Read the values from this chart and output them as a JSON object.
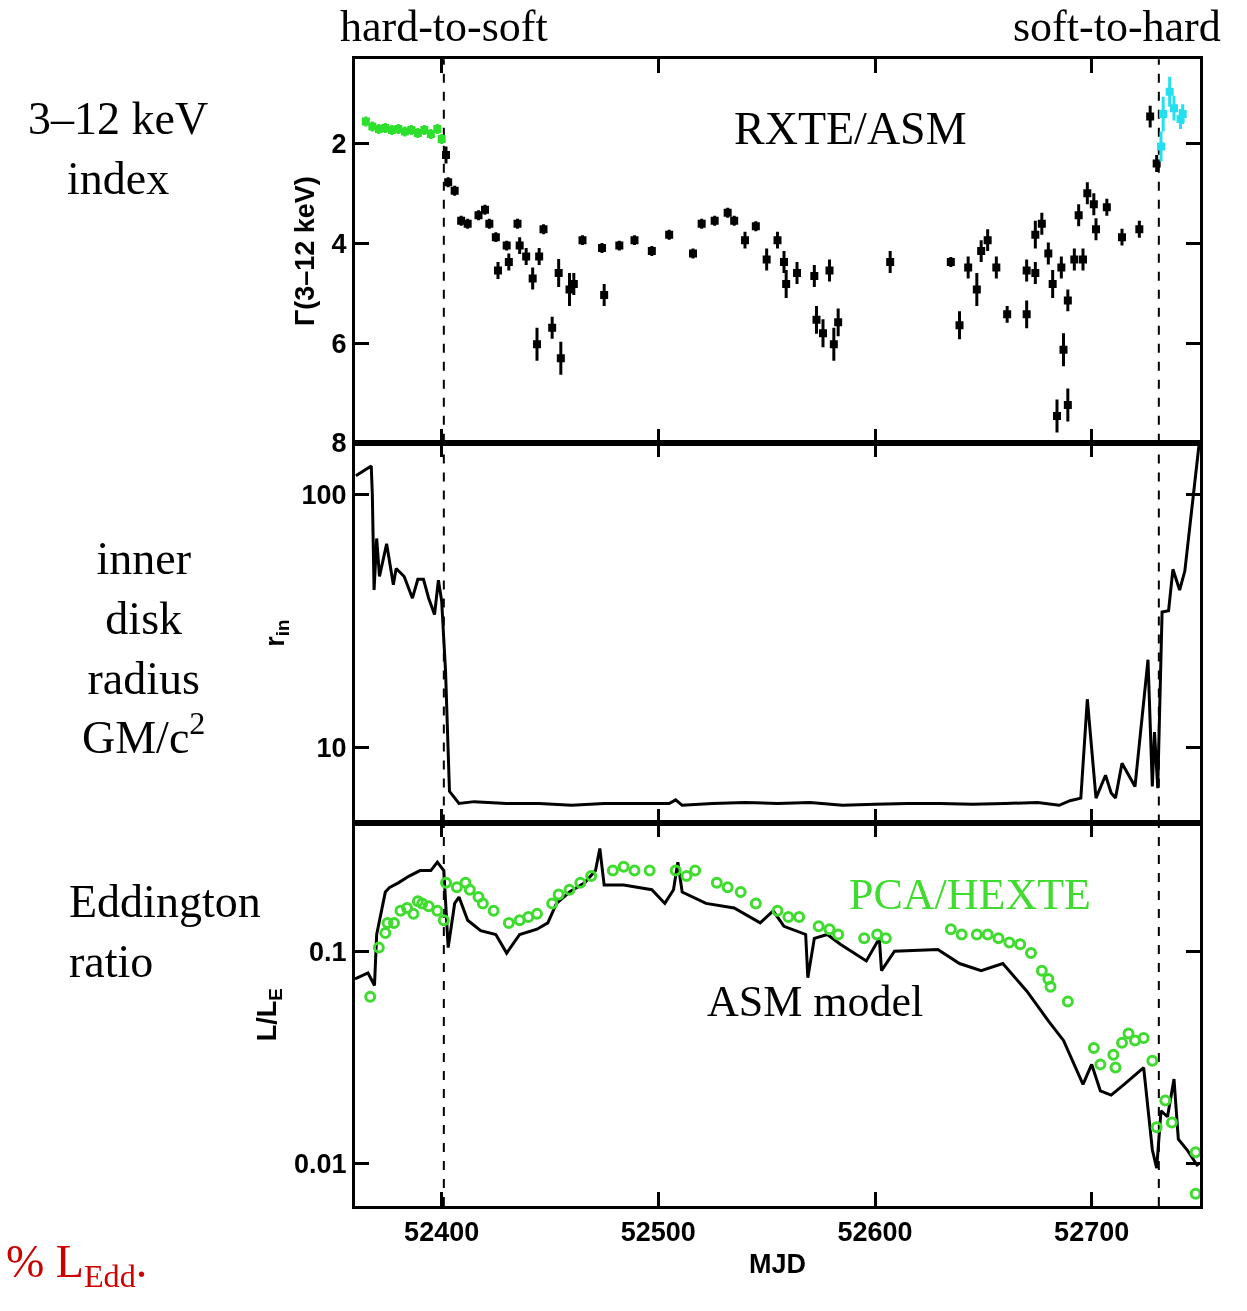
{
  "chart_data": [
    {
      "type": "scatter",
      "ylabel": "Γ(3–12 keV)",
      "xlim": [
        52360,
        52750
      ],
      "xticks": [
        52400,
        52500,
        52600,
        52700
      ],
      "ylim": [
        8,
        0.3
      ],
      "yticks": [
        2,
        4,
        6,
        8
      ],
      "tick_labels": "y",
      "marker": "square",
      "annotations": [
        "3–12 keV\nindex",
        "RXTE/ASM"
      ],
      "ref_lines": [
        {
          "axis": "x",
          "value": 52401,
          "label": "hard-to-soft",
          "line_style": "dashed"
        },
        {
          "axis": "x",
          "value": 52731,
          "label": "soft-to-hard",
          "line_style": "dashed"
        }
      ],
      "series": [
        {
          "color": "#2ee02e",
          "x": [
            52365,
            52368,
            52371,
            52374,
            52377,
            52380,
            52383,
            52386,
            52389,
            52392,
            52395,
            52398,
            52400
          ],
          "values": [
            1.55,
            1.65,
            1.7,
            1.68,
            1.72,
            1.7,
            1.75,
            1.72,
            1.78,
            1.72,
            1.8,
            1.7,
            1.9
          ],
          "errors": [
            0.1,
            0.1,
            0.1,
            0.1,
            0.1,
            0.1,
            0.1,
            0.1,
            0.1,
            0.1,
            0.1,
            0.1,
            0.1
          ]
        },
        {
          "color": "#000000",
          "x": [
            52402,
            52403,
            52406,
            52409,
            52412,
            52417,
            52420,
            52422,
            52425,
            52426,
            52430,
            52431,
            52435,
            52436,
            52439,
            52442,
            52445,
            52447,
            52444,
            52451,
            52454,
            52455,
            52459,
            52461,
            52465,
            52475,
            52474,
            52482,
            52489,
            52497,
            52505,
            52516,
            52520,
            52526,
            52532,
            52535,
            52540,
            52545,
            52550,
            52555,
            52558,
            52564,
            52559,
            52572,
            52573,
            52576,
            52579,
            52581,
            52583,
            52607,
            52635,
            52639,
            52643,
            52647,
            52649,
            52652,
            52656,
            52661,
            52670,
            52670,
            52674,
            52677,
            52674,
            52680,
            52682,
            52684,
            52686,
            52687,
            52689,
            52689,
            52692,
            52694,
            52696,
            52698,
            52701,
            52702,
            52707,
            52714,
            52722,
            52727,
            52730
          ],
          "values": [
            2.22,
            2.77,
            2.94,
            3.54,
            3.6,
            3.43,
            3.32,
            3.6,
            3.87,
            4.54,
            4.04,
            4.37,
            3.6,
            4.04,
            4.26,
            4.7,
            4.26,
            3.71,
            6.02,
            5.69,
            4.59,
            6.3,
            4.92,
            4.81,
            3.93,
            5.03,
            4.09,
            4.04,
            3.93,
            4.15,
            3.82,
            4.2,
            3.6,
            3.54,
            3.38,
            3.54,
            3.93,
            3.65,
            4.32,
            3.93,
            4.37,
            4.59,
            4.81,
            4.65,
            5.53,
            5.8,
            4.54,
            6.02,
            5.58,
            4.37,
            4.37,
            5.64,
            4.48,
            4.92,
            4.15,
            3.93,
            4.48,
            5.42,
            5.42,
            4.54,
            3.82,
            3.6,
            4.59,
            4.2,
            4.81,
            7.46,
            4.48,
            6.13,
            7.24,
            5.14,
            4.32,
            3.43,
            4.32,
            2.99,
            3.21,
            3.71,
            3.27,
            3.87,
            3.71,
            1.45,
            2.39
          ],
          "errors": [
            0.17,
            0.1,
            0.1,
            0.1,
            0.1,
            0.1,
            0.1,
            0.1,
            0.1,
            0.17,
            0.1,
            0.17,
            0.1,
            0.17,
            0.17,
            0.22,
            0.17,
            0.1,
            0.33,
            0.22,
            0.28,
            0.33,
            0.33,
            0.22,
            0.1,
            0.22,
            0.1,
            0.1,
            0.1,
            0.1,
            0.1,
            0.1,
            0.1,
            0.1,
            0.1,
            0.1,
            0.17,
            0.1,
            0.22,
            0.17,
            0.22,
            0.22,
            0.28,
            0.22,
            0.28,
            0.28,
            0.22,
            0.33,
            0.28,
            0.22,
            0.1,
            0.28,
            0.22,
            0.33,
            0.22,
            0.22,
            0.22,
            0.17,
            0.28,
            0.22,
            0.28,
            0.22,
            0.22,
            0.22,
            0.28,
            0.33,
            0.22,
            0.33,
            0.33,
            0.22,
            0.22,
            0.22,
            0.22,
            0.22,
            0.22,
            0.22,
            0.17,
            0.17,
            0.17,
            0.22,
            0.17
          ]
        },
        {
          "color": "#22e0f0",
          "x": [
            52732,
            52733,
            52736,
            52738,
            52741,
            52742
          ],
          "values": [
            2.05,
            1.4,
            0.95,
            1.28,
            1.5,
            1.4
          ],
          "errors": [
            0.3,
            0.35,
            0.3,
            0.25,
            0.2,
            0.2
          ]
        }
      ]
    },
    {
      "type": "line",
      "ylabel": "r$_{in}$",
      "xlim": [
        52360,
        52750
      ],
      "xticks": [
        52400,
        52500,
        52600,
        52700
      ],
      "ylim": [
        5,
        160
      ],
      "yticks": [
        10,
        100
      ],
      "log": true,
      "tick_labels": "y",
      "annotations": [
        "inner\ndisk\nradius\nGM/c$^{2}$"
      ],
      "ref_lines": [
        {
          "axis": "x",
          "value": 52401,
          "line_style": "dashed"
        },
        {
          "axis": "x",
          "value": 52731,
          "line_style": "dashed"
        }
      ],
      "series": [
        {
          "color": "#000000",
          "x": [
            52360.4,
            52367.5,
            52368,
            52368.8,
            52370,
            52371.3,
            52374.6,
            52377.7,
            52379,
            52382.7,
            52386.5,
            52389,
            52391.6,
            52394,
            52396.7,
            52398.5,
            52400,
            52401.8,
            52403.6,
            52408,
            52415,
            52430,
            52445,
            52460,
            52475,
            52490,
            52505,
            52508,
            52511,
            52525,
            52540,
            52555,
            52570,
            52585,
            52600,
            52615,
            52630,
            52645,
            52660,
            52675,
            52685,
            52690,
            52695,
            52698,
            52702,
            52706.4,
            52709,
            52711,
            52714,
            52720,
            52726,
            52728,
            52729,
            52730.5,
            52732.5,
            52735.5,
            52737.5,
            52740.6,
            52743,
            52749.5
          ],
          "values": [
            118.6,
            129.7,
            100,
            41.9,
            67,
            47.4,
            63.8,
            44,
            51,
            47.4,
            38.9,
            46.2,
            46.2,
            38.9,
            33.5,
            45.8,
            37.9,
            19.9,
            6.7,
            6.0,
            6.1,
            6.0,
            6.0,
            5.9,
            6.0,
            6.0,
            6.0,
            6.2,
            5.9,
            6.0,
            6.05,
            6.0,
            6.05,
            5.9,
            5.95,
            6.0,
            6.0,
            5.95,
            6.0,
            6.05,
            5.9,
            6.15,
            6.3,
            15.5,
            6.3,
            7.76,
            6.6,
            6.3,
            8.65,
            7.0,
            22.2,
            7.0,
            11.5,
            6.9,
            34.3,
            34.7,
            50.6,
            41.9,
            49.8,
            156
          ]
        }
      ]
    },
    {
      "type": "line",
      "xlabel": "MJD",
      "ylabel": "L/L$_{E}$",
      "xlim": [
        52360,
        52750
      ],
      "xticks": [
        52400,
        52500,
        52600,
        52700
      ],
      "ylim": [
        0.0063,
        0.4
      ],
      "yticks": [
        0.01,
        0.1
      ],
      "log": true,
      "annotations": [
        "Eddington\nratio",
        "% L$_{Edd}$."
      ],
      "ref_lines": [
        {
          "axis": "x",
          "value": 52401,
          "line_style": "dashed"
        },
        {
          "axis": "x",
          "value": 52731,
          "line_style": "dashed"
        }
      ],
      "series": [
        {
          "name": "ASM model",
          "type": "line",
          "color": "#000000",
          "x": [
            52360,
            52366,
            52369,
            52370,
            52374,
            52376,
            52380,
            52385,
            52390,
            52395,
            52398,
            52401,
            52403,
            52406,
            52408,
            52412,
            52418,
            52425,
            52430,
            52436,
            52444,
            52449,
            52453,
            52459,
            52466,
            52471,
            52473,
            52475,
            52484,
            52497,
            52503,
            52507,
            52509,
            52511,
            52522,
            52535,
            52547,
            52553,
            52558,
            52568,
            52569,
            52572,
            52578,
            52584,
            52596,
            52602,
            52603,
            52609,
            52629,
            52639,
            52649,
            52659,
            52670,
            52680,
            52687,
            52696,
            52700,
            52704,
            52709,
            52715,
            52724,
            52728,
            52730,
            52732,
            52735,
            52738,
            52740,
            52744,
            52749
          ],
          "values": [
            0.074,
            0.079,
            0.069,
            0.12,
            0.19,
            0.2,
            0.21,
            0.226,
            0.24,
            0.24,
            0.263,
            0.24,
            0.104,
            0.168,
            0.18,
            0.14,
            0.125,
            0.12,
            0.098,
            0.12,
            0.127,
            0.136,
            0.168,
            0.19,
            0.21,
            0.24,
            0.305,
            0.205,
            0.205,
            0.195,
            0.168,
            0.195,
            0.263,
            0.19,
            0.168,
            0.16,
            0.136,
            0.155,
            0.131,
            0.12,
            0.075,
            0.115,
            0.12,
            0.108,
            0.09,
            0.115,
            0.081,
            0.1,
            0.102,
            0.0875,
            0.081,
            0.0875,
            0.065,
            0.047,
            0.038,
            0.0236,
            0.0293,
            0.022,
            0.021,
            0.0236,
            0.0283,
            0.0116,
            0.0095,
            0.0177,
            0.0166,
            0.025,
            0.013,
            0.0116,
            0.0097
          ]
        },
        {
          "name": "PCA/HEXTE",
          "type": "scatter",
          "marker": "circle",
          "color": "#3fdc2f",
          "x": [
            52367,
            52371,
            52374,
            52375,
            52378,
            52381,
            52384,
            52387,
            52389,
            52391,
            52394,
            52398,
            52401,
            52402,
            52407,
            52411,
            52413,
            52417,
            52419,
            52424,
            52431,
            52436,
            52440,
            52444,
            52451,
            52454,
            52459,
            52464,
            52469,
            52479,
            52484,
            52489,
            52496,
            52508,
            52513,
            52517,
            52527,
            52532,
            52538,
            52545,
            52555,
            52560,
            52565,
            52574,
            52579,
            52583,
            52595,
            52601,
            52605,
            52635,
            52640,
            52647,
            52652,
            52657,
            52662,
            52667,
            52672,
            52677,
            52680,
            52681,
            52689,
            52701,
            52704,
            52710,
            52711,
            52714,
            52717,
            52720,
            52724,
            52728,
            52730,
            52734,
            52737,
            52748,
            52748
          ],
          "values": [
            0.061,
            0.104,
            0.122,
            0.136,
            0.136,
            0.155,
            0.16,
            0.15,
            0.172,
            0.168,
            0.163,
            0.155,
            0.14,
            0.21,
            0.2,
            0.21,
            0.195,
            0.18,
            0.168,
            0.155,
            0.136,
            0.14,
            0.145,
            0.15,
            0.168,
            0.185,
            0.195,
            0.21,
            0.226,
            0.24,
            0.25,
            0.24,
            0.24,
            0.24,
            0.226,
            0.24,
            0.21,
            0.2,
            0.19,
            0.168,
            0.155,
            0.145,
            0.145,
            0.131,
            0.127,
            0.12,
            0.115,
            0.12,
            0.115,
            0.127,
            0.12,
            0.12,
            0.12,
            0.115,
            0.11,
            0.108,
            0.098,
            0.081,
            0.074,
            0.068,
            0.058,
            0.035,
            0.0293,
            0.0325,
            0.0283,
            0.037,
            0.041,
            0.038,
            0.039,
            0.0305,
            0.0148,
            0.0198,
            0.0156,
            0.0113,
            0.0072
          ]
        }
      ]
    }
  ]
}
